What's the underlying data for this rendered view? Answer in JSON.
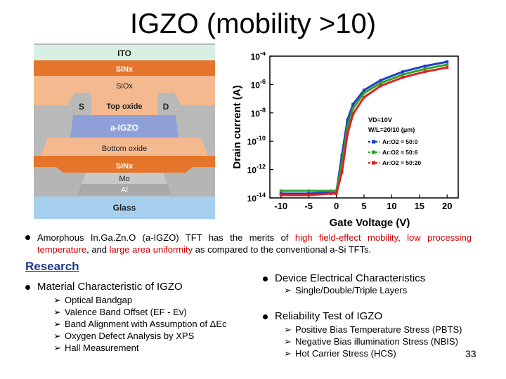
{
  "title": "IGZO  (mobility >10)",
  "device": {
    "layers": {
      "ito": "ITO",
      "sinx_top": "SiNx",
      "siox": "SiOx",
      "source": "S",
      "top_oxide": "Top oxide",
      "drain": "D",
      "igzo": "a-IGZO",
      "bottom_oxide": "Bottom oxide",
      "sinx_bottom": "SiNx",
      "mo": "Mo",
      "al": "Al",
      "glass": "Glass"
    },
    "colors": {
      "ito": "#d8f0e4",
      "sinx": "#e4752a",
      "oxide": "#f5b98f",
      "igzo": "#8fa0d8",
      "metal": "#b3b3b3",
      "glass": "#a6cfee"
    }
  },
  "chart_data": {
    "type": "line",
    "xlabel": "Gate Voltage (V)",
    "ylabel": "Drain current (A)",
    "xlim": [
      -12,
      22
    ],
    "ylim_log10": [
      -14,
      -4
    ],
    "x_ticks": [
      "-10",
      "-5",
      "0",
      "5",
      "10",
      "15",
      "20"
    ],
    "y_ticks": [
      {
        "base": "10",
        "exp": "-4"
      },
      {
        "base": "10",
        "exp": "-6"
      },
      {
        "base": "10",
        "exp": "-8"
      },
      {
        "base": "10",
        "exp": "-10"
      },
      {
        "base": "10",
        "exp": "-12"
      },
      {
        "base": "10",
        "exp": "-14"
      }
    ],
    "annotations": {
      "vd": "VD=10V",
      "wl": "W/L=20/10 (μm)"
    },
    "series": [
      {
        "name": "Ar:O2 = 50:0",
        "color": "#1f3fbf",
        "x": [
          -10,
          -5,
          -1,
          0,
          1,
          2,
          3,
          5,
          8,
          12,
          16,
          20
        ],
        "log_values": [
          -13.7,
          -13.7,
          -13.6,
          -13.6,
          -11.0,
          -8.5,
          -7.4,
          -6.4,
          -5.7,
          -5.1,
          -4.7,
          -4.4
        ]
      },
      {
        "name": "Ar:O2 = 50:6",
        "color": "#2aa52a",
        "x": [
          -10,
          -5,
          -1,
          0,
          1,
          2,
          3,
          5,
          8,
          12,
          16,
          20
        ],
        "log_values": [
          -13.5,
          -13.5,
          -13.5,
          -13.5,
          -11.6,
          -9.0,
          -7.7,
          -6.6,
          -5.9,
          -5.3,
          -4.9,
          -4.6
        ]
      },
      {
        "name": "Ar:O2 = 50:20",
        "color": "#e02020",
        "x": [
          -10,
          -5,
          -1,
          0,
          1,
          2,
          3,
          5,
          8,
          12,
          16,
          20
        ],
        "log_values": [
          -13.8,
          -13.8,
          -13.7,
          -13.7,
          -12.2,
          -9.5,
          -8.1,
          -6.9,
          -6.1,
          -5.5,
          -5.1,
          -4.8
        ]
      }
    ]
  },
  "intro": {
    "p1": "Amorphous In.Ga.Zn.O (a-IGZO) TFT has the merits of ",
    "h1": "high field-effect mobility",
    "p2": ", ",
    "h2": "low processing temperature",
    "p3": ", and ",
    "h3": "large area uniformity",
    "p4": " as compared to the conventional  a-Si TFTs."
  },
  "research_heading": "Research",
  "material": {
    "heading": "Material Characteristic of IGZO",
    "items": [
      "Optical Bandgap",
      "Valence Band Offset (EF - Ev)",
      "Band Alignment with Assumption of ΔEc",
      "Oxygen Defect Analysis by XPS",
      "Hall Measurement"
    ]
  },
  "electrical": {
    "heading": "Device Electrical Characteristics",
    "items": [
      "Single/Double/Triple Layers"
    ]
  },
  "reliability": {
    "heading": "Reliability Test of IGZO",
    "items": [
      "Positive Bias Temperature Stress (PBTS)",
      "Negative Bias illumination Stress (NBIS)",
      "Hot Carrier Stress (HCS)"
    ]
  },
  "page_number": "33"
}
